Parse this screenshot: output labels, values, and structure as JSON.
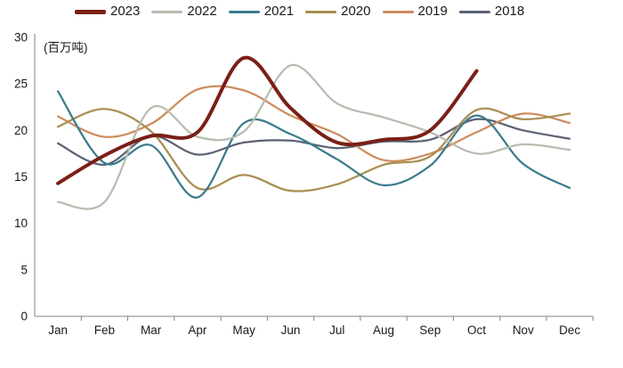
{
  "chart_data": {
    "type": "line",
    "title": "",
    "unit_label": "(百万吨)",
    "categories": [
      "Jan",
      "Feb",
      "Mar",
      "Apr",
      "May",
      "Jun",
      "Jul",
      "Aug",
      "Sep",
      "Oct",
      "Nov",
      "Dec"
    ],
    "y_axis": {
      "min": 0,
      "max": 30,
      "step": 5,
      "ticks": [
        0,
        5,
        10,
        15,
        20,
        25,
        30
      ]
    },
    "grid": false,
    "legend_position": "top",
    "series": [
      {
        "name": "2023",
        "color": "#7a1f17",
        "line_width": 4,
        "values": [
          14.3,
          17.3,
          19.4,
          19.8,
          27.8,
          22.4,
          18.7,
          19.0,
          20.0,
          26.4,
          null,
          null
        ]
      },
      {
        "name": "2022",
        "color": "#b8bcb0",
        "line_width": 2.25,
        "values": [
          12.3,
          12.3,
          22.4,
          19.3,
          19.9,
          27.0,
          22.9,
          21.4,
          19.8,
          17.5,
          18.5,
          17.9
        ]
      },
      {
        "name": "2021",
        "color": "#3a7b8d",
        "line_width": 2.25,
        "values": [
          24.2,
          16.5,
          18.4,
          12.8,
          20.8,
          19.6,
          16.9,
          14.1,
          16.2,
          21.6,
          16.4,
          13.8
        ]
      },
      {
        "name": "2020",
        "color": "#a98e52",
        "line_width": 2.25,
        "values": [
          20.4,
          22.3,
          19.9,
          13.8,
          15.2,
          13.5,
          14.2,
          16.3,
          17.2,
          22.2,
          21.2,
          21.8
        ]
      },
      {
        "name": "2019",
        "color": "#cd8c5e",
        "line_width": 2.25,
        "values": [
          21.5,
          19.3,
          20.7,
          24.4,
          24.3,
          21.6,
          19.6,
          16.8,
          17.5,
          19.8,
          21.8,
          20.8
        ]
      },
      {
        "name": "2018",
        "color": "#5b6175",
        "line_width": 2.25,
        "values": [
          18.6,
          16.3,
          19.4,
          17.4,
          18.7,
          18.9,
          18.1,
          18.8,
          19.0,
          21.2,
          20.0,
          19.1
        ]
      }
    ]
  },
  "colors": {
    "axis": "#808080",
    "text": "#1a1a1a",
    "background": "#ffffff"
  }
}
